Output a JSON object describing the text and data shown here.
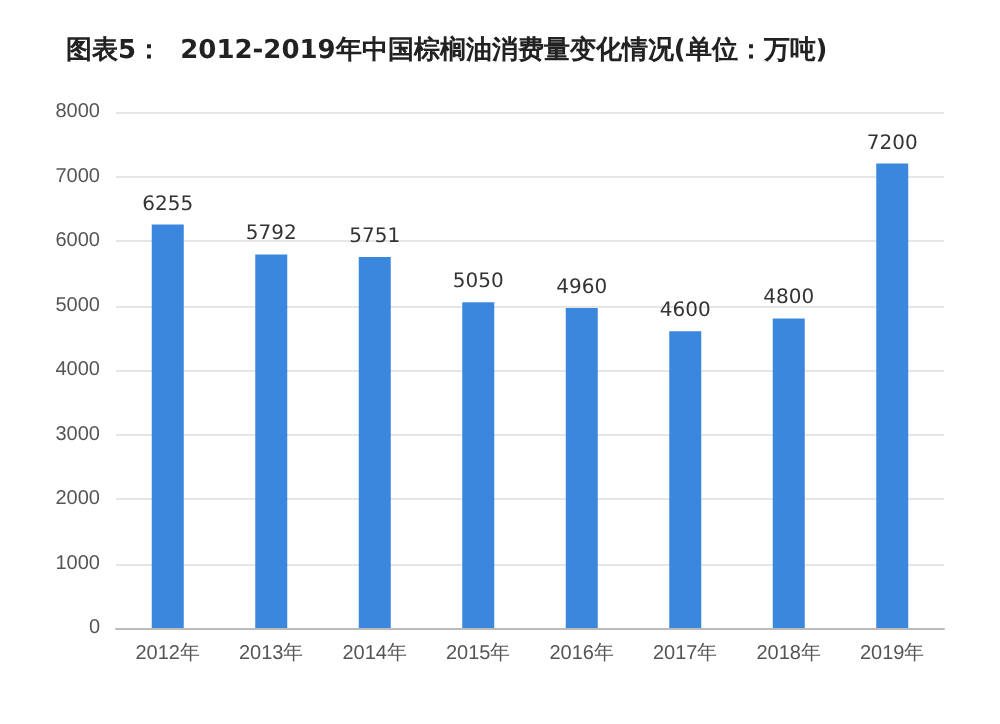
{
  "chart_data": {
    "type": "bar",
    "title": "图表5：  2012-2019年中国棕榈油消费量变化情况(单位：万吨)",
    "categories": [
      "2012年",
      "2013年",
      "2014年",
      "2015年",
      "2016年",
      "2017年",
      "2018年",
      "2019年"
    ],
    "values": [
      6255,
      5792,
      5751,
      5050,
      4960,
      4600,
      4800,
      7200
    ],
    "color": "#3a87dd",
    "ylim": [
      0,
      8000
    ],
    "yticks": [
      0,
      1000,
      2000,
      3000,
      4000,
      5000,
      6000,
      7000,
      8000
    ],
    "grid": "y",
    "data_labels": true
  }
}
